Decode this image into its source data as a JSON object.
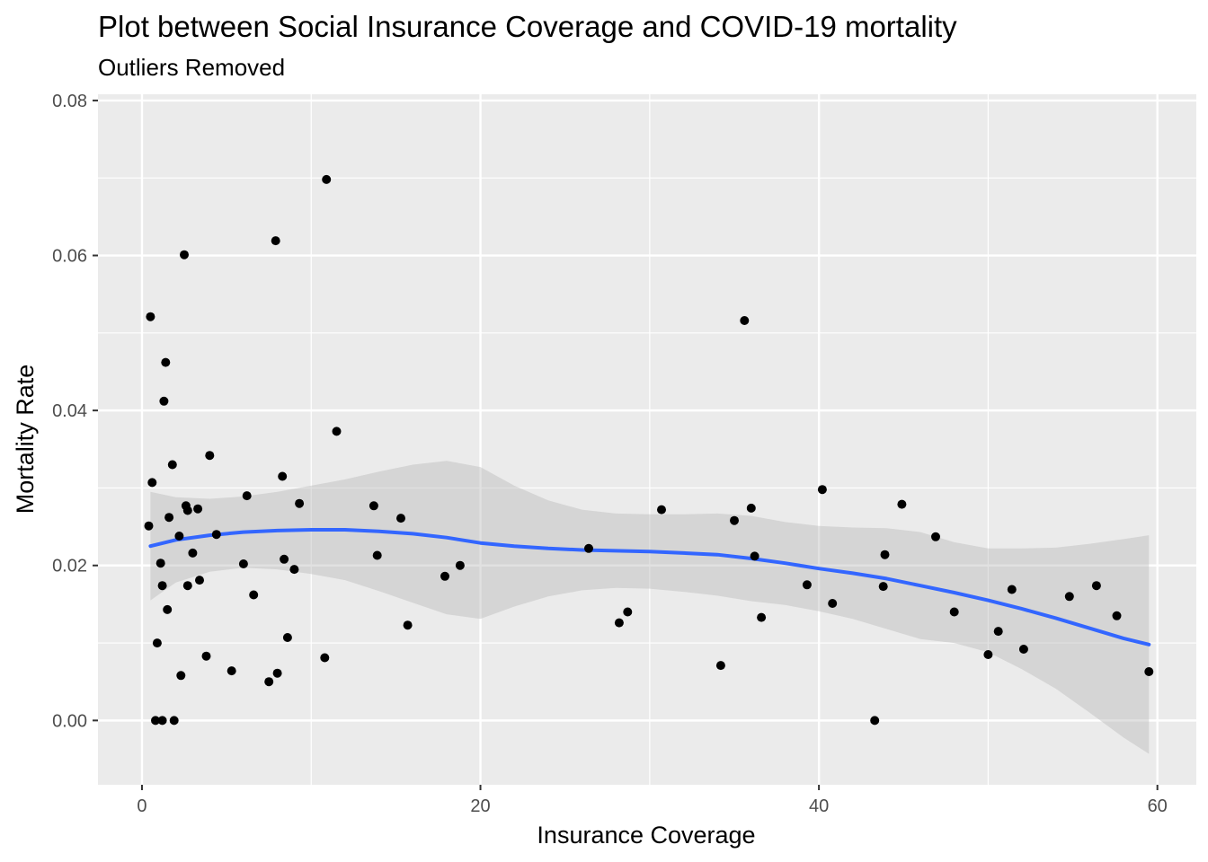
{
  "chart_data": {
    "type": "scatter",
    "title": "Plot between Social Insurance Coverage and COVID-19 mortality",
    "subtitle": "Outliers Removed",
    "xlabel": "Insurance Coverage",
    "ylabel": "Mortality Rate",
    "xlim": [
      -2.6,
      62.3
    ],
    "ylim": [
      -0.0083,
      0.0808
    ],
    "x_ticks": [
      0,
      20,
      40,
      60
    ],
    "x_tick_labels": [
      "0",
      "20",
      "40",
      "60"
    ],
    "y_ticks": [
      0.0,
      0.02,
      0.04,
      0.06,
      0.08
    ],
    "y_tick_labels": [
      "0.00",
      "0.02",
      "0.04",
      "0.06",
      "0.08"
    ],
    "grid": true,
    "colors": {
      "panel_background": "#ebebeb",
      "grid": "#ffffff",
      "points": "#000000",
      "smooth_line": "#3366ff",
      "confidence_band": "#b3b3b3"
    },
    "series": [
      {
        "kind": "points",
        "points": [
          [
            0.4,
            0.0251
          ],
          [
            0.5,
            0.0521
          ],
          [
            0.6,
            0.0307
          ],
          [
            0.8,
            0.0
          ],
          [
            0.9,
            0.01
          ],
          [
            1.1,
            0.0203
          ],
          [
            1.2,
            0.0174
          ],
          [
            1.2,
            0.0
          ],
          [
            1.3,
            0.0412
          ],
          [
            1.4,
            0.0462
          ],
          [
            1.5,
            0.0143
          ],
          [
            1.6,
            0.0262
          ],
          [
            1.8,
            0.033
          ],
          [
            1.9,
            0.0
          ],
          [
            2.2,
            0.0238
          ],
          [
            2.3,
            0.0058
          ],
          [
            2.5,
            0.0601
          ],
          [
            2.6,
            0.0277
          ],
          [
            2.7,
            0.0271
          ],
          [
            2.7,
            0.0174
          ],
          [
            3.0,
            0.0216
          ],
          [
            3.3,
            0.0273
          ],
          [
            3.4,
            0.0181
          ],
          [
            3.8,
            0.0083
          ],
          [
            4.0,
            0.0342
          ],
          [
            4.4,
            0.024
          ],
          [
            5.3,
            0.0064
          ],
          [
            6.0,
            0.0202
          ],
          [
            6.2,
            0.029
          ],
          [
            6.6,
            0.0162
          ],
          [
            7.5,
            0.005
          ],
          [
            7.9,
            0.0619
          ],
          [
            8.0,
            0.0061
          ],
          [
            8.3,
            0.0315
          ],
          [
            8.4,
            0.0208
          ],
          [
            8.6,
            0.0107
          ],
          [
            9.0,
            0.0195
          ],
          [
            9.3,
            0.028
          ],
          [
            10.8,
            0.0081
          ],
          [
            10.9,
            0.0698
          ],
          [
            11.5,
            0.0373
          ],
          [
            13.7,
            0.0277
          ],
          [
            13.9,
            0.0213
          ],
          [
            15.3,
            0.0261
          ],
          [
            15.7,
            0.0123
          ],
          [
            17.9,
            0.0186
          ],
          [
            18.8,
            0.02
          ],
          [
            26.4,
            0.0222
          ],
          [
            28.2,
            0.0126
          ],
          [
            28.7,
            0.014
          ],
          [
            30.7,
            0.0272
          ],
          [
            34.2,
            0.0071
          ],
          [
            35.0,
            0.0258
          ],
          [
            35.6,
            0.0516
          ],
          [
            36.0,
            0.0274
          ],
          [
            36.2,
            0.0212
          ],
          [
            36.6,
            0.0133
          ],
          [
            39.3,
            0.0175
          ],
          [
            40.2,
            0.0298
          ],
          [
            40.8,
            0.0151
          ],
          [
            43.3,
            0.0
          ],
          [
            43.8,
            0.0173
          ],
          [
            43.9,
            0.0214
          ],
          [
            44.9,
            0.0279
          ],
          [
            46.9,
            0.0237
          ],
          [
            48.0,
            0.014
          ],
          [
            50.0,
            0.0085
          ],
          [
            50.6,
            0.0115
          ],
          [
            51.4,
            0.0169
          ],
          [
            52.1,
            0.0092
          ],
          [
            54.8,
            0.016
          ],
          [
            56.4,
            0.0174
          ],
          [
            57.6,
            0.0135
          ],
          [
            59.5,
            0.0063
          ]
        ]
      },
      {
        "kind": "smooth",
        "x": [
          0.5,
          2,
          4,
          6,
          8,
          10,
          12,
          14,
          16,
          18,
          20,
          22,
          24,
          26,
          28,
          30,
          32,
          34,
          36,
          38,
          40,
          42,
          44,
          46,
          48,
          50,
          52,
          54,
          56,
          58,
          59.5
        ],
        "y": [
          0.0225,
          0.0233,
          0.0239,
          0.0243,
          0.0245,
          0.0246,
          0.0246,
          0.0244,
          0.0241,
          0.0236,
          0.0229,
          0.0225,
          0.0222,
          0.022,
          0.0219,
          0.0218,
          0.0216,
          0.0214,
          0.0209,
          0.0203,
          0.0196,
          0.019,
          0.0183,
          0.0174,
          0.0165,
          0.0155,
          0.0144,
          0.0132,
          0.0119,
          0.0106,
          0.0098
        ],
        "upper": [
          0.0295,
          0.0288,
          0.0286,
          0.0289,
          0.0295,
          0.0303,
          0.0311,
          0.0321,
          0.033,
          0.0335,
          0.0327,
          0.0303,
          0.0284,
          0.0272,
          0.0267,
          0.0266,
          0.0266,
          0.0267,
          0.0264,
          0.0256,
          0.0251,
          0.0249,
          0.0248,
          0.0243,
          0.023,
          0.0222,
          0.0222,
          0.0223,
          0.0228,
          0.0234,
          0.0239
        ],
        "lower": [
          0.0155,
          0.0178,
          0.0192,
          0.0197,
          0.0195,
          0.0189,
          0.0181,
          0.0167,
          0.0152,
          0.0137,
          0.0131,
          0.0147,
          0.016,
          0.0168,
          0.0171,
          0.017,
          0.0166,
          0.0161,
          0.0154,
          0.0149,
          0.0141,
          0.0131,
          0.0118,
          0.0105,
          0.01,
          0.0088,
          0.0066,
          0.0041,
          0.001,
          -0.0022,
          -0.0043
        ]
      }
    ]
  }
}
